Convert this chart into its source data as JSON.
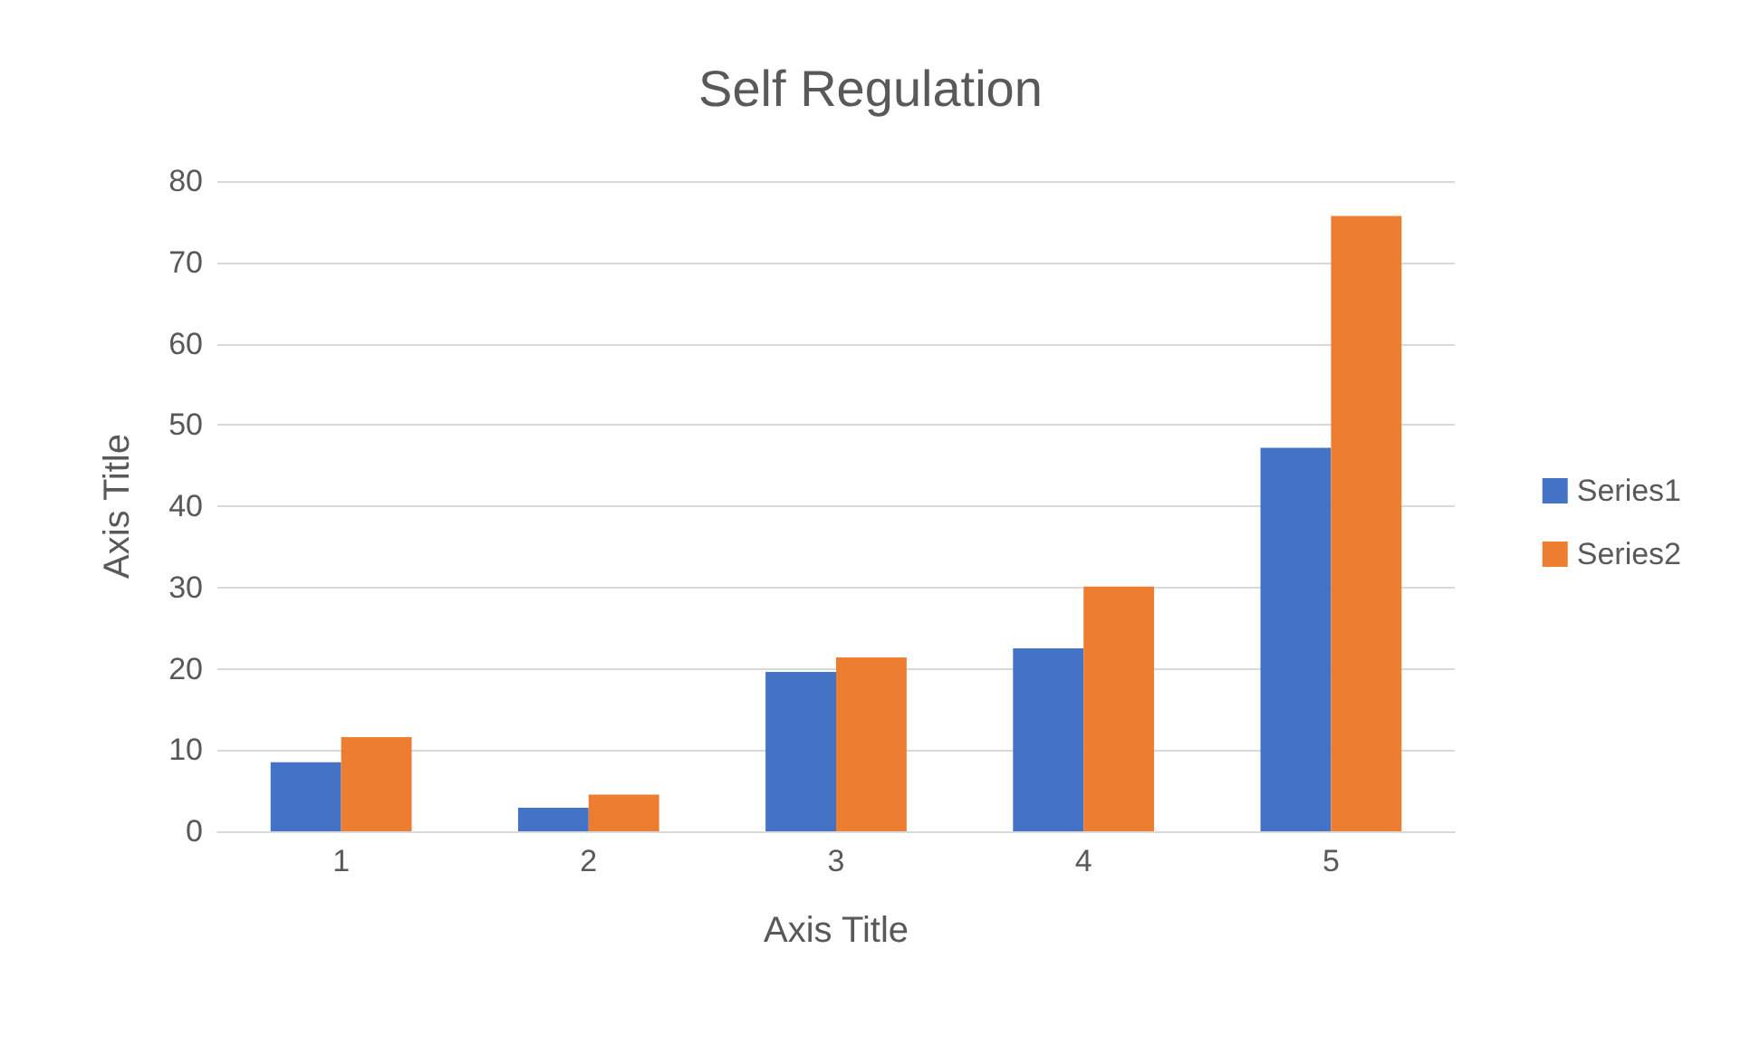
{
  "chart_data": {
    "type": "bar",
    "title": "Self Regulation",
    "xlabel": "Axis Title",
    "ylabel": "Axis Title",
    "categories": [
      "1",
      "2",
      "3",
      "4",
      "5"
    ],
    "series": [
      {
        "name": "Series1",
        "color": "#4472c4",
        "values": [
          8.5,
          2.9,
          19.6,
          22.5,
          47.2
        ]
      },
      {
        "name": "Series2",
        "color": "#ed7d31",
        "values": [
          11.6,
          4.5,
          21.4,
          30.1,
          75.7
        ]
      }
    ],
    "ylim": [
      0,
      80
    ],
    "yticks": [
      0,
      10,
      20,
      30,
      40,
      50,
      60,
      70,
      80
    ],
    "grid": "y",
    "legend": "right"
  }
}
